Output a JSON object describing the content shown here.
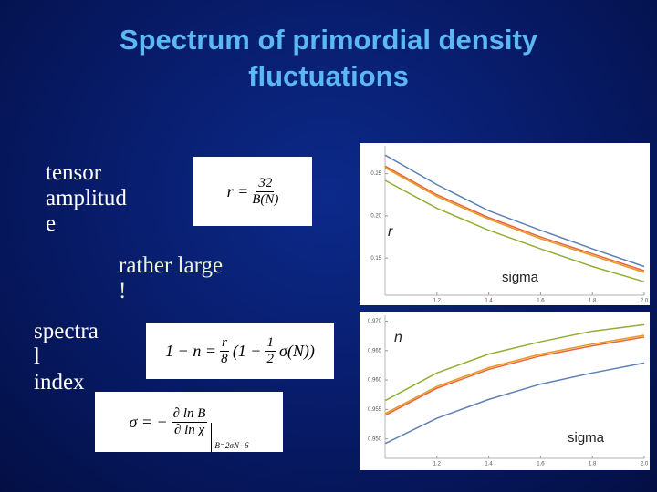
{
  "title": "Spectrum of primordial density fluctuations",
  "labels": {
    "tensor": [
      "tensor",
      "amplitud",
      "e"
    ],
    "note": [
      "rather large",
      "!"
    ],
    "spectral": [
      "spectra",
      "l",
      "index"
    ]
  },
  "formulas": [
    {
      "lhs": "r =",
      "num": "32",
      "den": "B(N)"
    },
    {
      "lhs": "1 − n =",
      "num": "r",
      "den": "8",
      "mid": "(1 +",
      "num2": "1",
      "den2": "2",
      "tail": "σ(N))"
    },
    {
      "lhs": "σ = −",
      "num": "∂ ln B",
      "den": "∂ ln χ",
      "sub": "B=2σN−6"
    }
  ],
  "chart_data": [
    {
      "type": "line",
      "y_label": "r",
      "x_label": "sigma",
      "x": [
        1.0,
        1.2,
        1.4,
        1.6,
        1.8,
        2.0
      ],
      "xlim": [
        1,
        2
      ],
      "xticks": [
        1.2,
        1.4,
        1.6,
        1.8,
        {
          "value": 2,
          "label": "2.0"
        }
      ],
      "ylim": [
        0.106,
        0.283
      ],
      "yticks": [
        0.15,
        {
          "value": 0.2,
          "label": "0.20"
        },
        0.25
      ],
      "series": [
        {
          "color": "#5e81b5",
          "values": [
            0.272,
            0.237,
            0.206,
            0.183,
            0.161,
            0.14
          ]
        },
        {
          "color": "#e19c24",
          "values": [
            0.257,
            0.223,
            0.196,
            0.173,
            0.153,
            0.133
          ]
        },
        {
          "color": "#eb6235",
          "values": [
            0.259,
            0.225,
            0.198,
            0.175,
            0.155,
            0.135
          ]
        },
        {
          "color": "#8fb032",
          "values": [
            0.242,
            0.209,
            0.183,
            0.161,
            0.14,
            0.122
          ]
        }
      ]
    },
    {
      "type": "line",
      "y_label": "n",
      "x_label": "sigma",
      "x": [
        1.0,
        1.2,
        1.4,
        1.6,
        1.8,
        2.0
      ],
      "xlim": [
        1,
        2
      ],
      "xticks": [
        1.2,
        1.4,
        1.6,
        1.8,
        {
          "value": 2,
          "label": "2.0"
        }
      ],
      "ylim": [
        0.9467,
        0.971
      ],
      "yticks": [
        {
          "value": 0.95,
          "label": "0.950"
        },
        0.955,
        {
          "value": 0.96,
          "label": "0.960"
        },
        0.965,
        {
          "value": 0.97,
          "label": "0.970"
        }
      ],
      "series": [
        {
          "color": "#8fb032",
          "values": [
            0.9565,
            0.9612,
            0.9644,
            0.9665,
            0.9683,
            0.9694
          ]
        },
        {
          "color": "#e19c24",
          "values": [
            0.9543,
            0.9589,
            0.9621,
            0.9644,
            0.9661,
            0.9676
          ]
        },
        {
          "color": "#eb6235",
          "values": [
            0.954,
            0.9586,
            0.9618,
            0.9641,
            0.9658,
            0.9673
          ]
        },
        {
          "color": "#5e81b5",
          "values": [
            0.9492,
            0.9535,
            0.9567,
            0.9593,
            0.9612,
            0.9629
          ]
        }
      ]
    }
  ]
}
